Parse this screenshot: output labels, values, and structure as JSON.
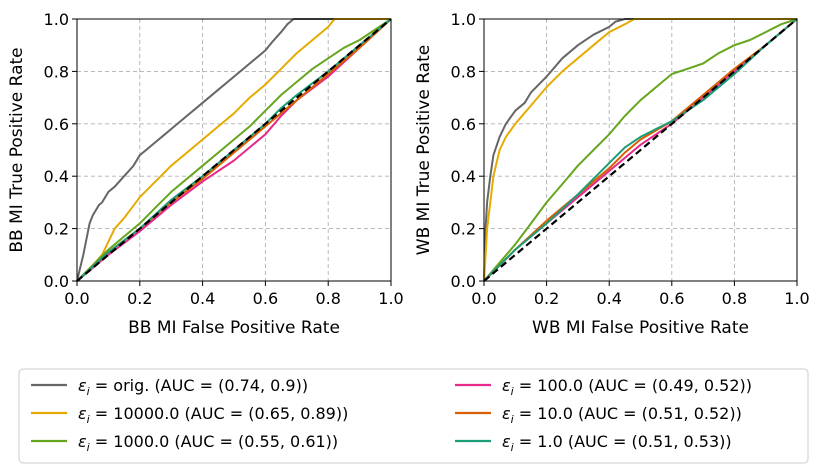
{
  "chart_data": [
    {
      "type": "line",
      "title": "",
      "xlabel": "BB MI False Positive Rate",
      "ylabel": "BB MI True Positive Rate",
      "xlim": [
        0,
        1
      ],
      "ylim": [
        0,
        1
      ],
      "xticks": [
        "0.0",
        "0.2",
        "0.4",
        "0.6",
        "0.8",
        "1.0"
      ],
      "yticks": [
        "0.0",
        "0.2",
        "0.4",
        "0.6",
        "0.8",
        "1.0"
      ],
      "grid": true,
      "series": [
        {
          "name": "orig",
          "color": "#666666",
          "x": [
            0,
            0.02,
            0.04,
            0.05,
            0.07,
            0.08,
            0.1,
            0.12,
            0.15,
            0.18,
            0.2,
            0.22,
            0.25,
            0.28,
            0.3,
            0.35,
            0.4,
            0.45,
            0.5,
            0.55,
            0.6,
            0.62,
            0.65,
            0.67,
            0.68,
            0.69,
            1.0
          ],
          "y": [
            0,
            0.1,
            0.22,
            0.25,
            0.29,
            0.3,
            0.34,
            0.36,
            0.4,
            0.44,
            0.48,
            0.5,
            0.53,
            0.56,
            0.58,
            0.63,
            0.68,
            0.73,
            0.78,
            0.83,
            0.88,
            0.91,
            0.95,
            0.98,
            0.99,
            1.0,
            1.0
          ]
        },
        {
          "name": "10000.0",
          "color": "#e6ab02",
          "x": [
            0,
            0.05,
            0.08,
            0.1,
            0.12,
            0.15,
            0.2,
            0.25,
            0.3,
            0.35,
            0.4,
            0.45,
            0.5,
            0.55,
            0.6,
            0.65,
            0.7,
            0.75,
            0.8,
            0.82,
            1.0
          ],
          "y": [
            0,
            0.06,
            0.1,
            0.15,
            0.2,
            0.24,
            0.32,
            0.38,
            0.44,
            0.49,
            0.54,
            0.59,
            0.64,
            0.7,
            0.75,
            0.81,
            0.87,
            0.92,
            0.97,
            1.0,
            1.0
          ]
        },
        {
          "name": "1000.0",
          "color": "#66a61e",
          "x": [
            0,
            0.1,
            0.15,
            0.2,
            0.25,
            0.3,
            0.35,
            0.4,
            0.45,
            0.5,
            0.55,
            0.6,
            0.65,
            0.7,
            0.75,
            0.8,
            0.85,
            0.9,
            0.95,
            1.0
          ],
          "y": [
            0,
            0.12,
            0.17,
            0.22,
            0.28,
            0.34,
            0.39,
            0.44,
            0.49,
            0.54,
            0.59,
            0.65,
            0.71,
            0.76,
            0.81,
            0.85,
            0.89,
            0.92,
            0.96,
            1.0
          ]
        },
        {
          "name": "100.0",
          "color": "#e7298a",
          "x": [
            0,
            0.1,
            0.2,
            0.3,
            0.4,
            0.5,
            0.55,
            0.6,
            0.65,
            0.7,
            0.8,
            0.9,
            1.0
          ],
          "y": [
            0,
            0.1,
            0.19,
            0.29,
            0.38,
            0.46,
            0.51,
            0.56,
            0.63,
            0.69,
            0.78,
            0.89,
            1.0
          ]
        },
        {
          "name": "10.0",
          "color": "#d95f02",
          "x": [
            0,
            0.1,
            0.2,
            0.3,
            0.4,
            0.5,
            0.6,
            0.7,
            0.8,
            0.9,
            1.0
          ],
          "y": [
            0,
            0.11,
            0.2,
            0.3,
            0.39,
            0.49,
            0.59,
            0.69,
            0.79,
            0.89,
            1.0
          ]
        },
        {
          "name": "1.0",
          "color": "#1b9e77",
          "x": [
            0,
            0.1,
            0.2,
            0.3,
            0.4,
            0.5,
            0.6,
            0.65,
            0.7,
            0.8,
            0.9,
            1.0
          ],
          "y": [
            0,
            0.11,
            0.2,
            0.31,
            0.4,
            0.5,
            0.6,
            0.66,
            0.71,
            0.8,
            0.9,
            1.0
          ]
        },
        {
          "name": "chance",
          "color": "#000000",
          "dashed": true,
          "x": [
            0,
            1
          ],
          "y": [
            0,
            1
          ]
        }
      ]
    },
    {
      "type": "line",
      "title": "",
      "xlabel": "WB MI False Positive Rate",
      "ylabel": "WB MI True Positive Rate",
      "xlim": [
        0,
        1
      ],
      "ylim": [
        0,
        1
      ],
      "xticks": [
        "0.0",
        "0.2",
        "0.4",
        "0.6",
        "0.8",
        "1.0"
      ],
      "yticks": [
        "0.0",
        "0.2",
        "0.4",
        "0.6",
        "0.8",
        "1.0"
      ],
      "grid": true,
      "series": [
        {
          "name": "orig",
          "color": "#666666",
          "x": [
            0,
            0.005,
            0.01,
            0.02,
            0.03,
            0.05,
            0.07,
            0.1,
            0.13,
            0.15,
            0.2,
            0.25,
            0.3,
            0.35,
            0.4,
            0.42,
            0.45,
            1.0
          ],
          "y": [
            0,
            0.2,
            0.3,
            0.4,
            0.48,
            0.55,
            0.6,
            0.65,
            0.68,
            0.72,
            0.78,
            0.85,
            0.9,
            0.94,
            0.97,
            0.99,
            1.0,
            1.0
          ]
        },
        {
          "name": "10000.0",
          "color": "#e6ab02",
          "x": [
            0,
            0.005,
            0.01,
            0.02,
            0.03,
            0.05,
            0.07,
            0.1,
            0.15,
            0.2,
            0.25,
            0.3,
            0.35,
            0.4,
            0.45,
            0.48,
            1.0
          ],
          "y": [
            0,
            0.1,
            0.2,
            0.3,
            0.4,
            0.5,
            0.55,
            0.6,
            0.67,
            0.74,
            0.8,
            0.85,
            0.9,
            0.95,
            0.98,
            1.0,
            1.0
          ]
        },
        {
          "name": "1000.0",
          "color": "#66a61e",
          "x": [
            0,
            0.05,
            0.1,
            0.15,
            0.2,
            0.25,
            0.3,
            0.35,
            0.4,
            0.45,
            0.5,
            0.55,
            0.6,
            0.65,
            0.7,
            0.75,
            0.8,
            0.85,
            0.9,
            0.95,
            1.0
          ],
          "y": [
            0,
            0.07,
            0.14,
            0.22,
            0.3,
            0.37,
            0.44,
            0.5,
            0.56,
            0.63,
            0.69,
            0.74,
            0.79,
            0.81,
            0.83,
            0.87,
            0.9,
            0.92,
            0.95,
            0.98,
            1.0
          ]
        },
        {
          "name": "100.0",
          "color": "#e7298a",
          "x": [
            0,
            0.1,
            0.2,
            0.3,
            0.4,
            0.45,
            0.5,
            0.6,
            0.7,
            0.8,
            0.9,
            1.0
          ],
          "y": [
            0,
            0.12,
            0.22,
            0.32,
            0.42,
            0.47,
            0.52,
            0.6,
            0.7,
            0.8,
            0.9,
            1.0
          ]
        },
        {
          "name": "10.0",
          "color": "#d95f02",
          "x": [
            0,
            0.1,
            0.2,
            0.3,
            0.4,
            0.45,
            0.5,
            0.6,
            0.7,
            0.8,
            0.9,
            1.0
          ],
          "y": [
            0,
            0.12,
            0.23,
            0.33,
            0.43,
            0.49,
            0.54,
            0.61,
            0.71,
            0.81,
            0.9,
            1.0
          ]
        },
        {
          "name": "1.0",
          "color": "#1b9e77",
          "x": [
            0,
            0.1,
            0.2,
            0.3,
            0.35,
            0.4,
            0.45,
            0.5,
            0.55,
            0.6,
            0.7,
            0.8,
            0.9,
            1.0
          ],
          "y": [
            0,
            0.12,
            0.22,
            0.33,
            0.39,
            0.45,
            0.51,
            0.55,
            0.58,
            0.61,
            0.69,
            0.79,
            0.9,
            1.0
          ]
        },
        {
          "name": "chance",
          "color": "#000000",
          "dashed": true,
          "x": [
            0,
            1
          ],
          "y": [
            0,
            1
          ]
        }
      ]
    }
  ],
  "legend": {
    "placement": "bottom-center",
    "entries": [
      {
        "eps": "ε",
        "sub": "i",
        "text": " = orig. (AUC = (0.74, 0.9))",
        "color": "#666666"
      },
      {
        "eps": "ε",
        "sub": "i",
        "text": " = 10000.0 (AUC = (0.65, 0.89))",
        "color": "#e6ab02"
      },
      {
        "eps": "ε",
        "sub": "i",
        "text": " = 1000.0 (AUC = (0.55, 0.61))",
        "color": "#66a61e"
      },
      {
        "eps": "ε",
        "sub": "i",
        "text": " = 100.0 (AUC = (0.49, 0.52))",
        "color": "#e7298a"
      },
      {
        "eps": "ε",
        "sub": "i",
        "text": " = 10.0 (AUC = (0.51, 0.52))",
        "color": "#d95f02"
      },
      {
        "eps": "ε",
        "sub": "i",
        "text": " = 1.0 (AUC = (0.51, 0.53))",
        "color": "#1b9e77"
      }
    ]
  }
}
